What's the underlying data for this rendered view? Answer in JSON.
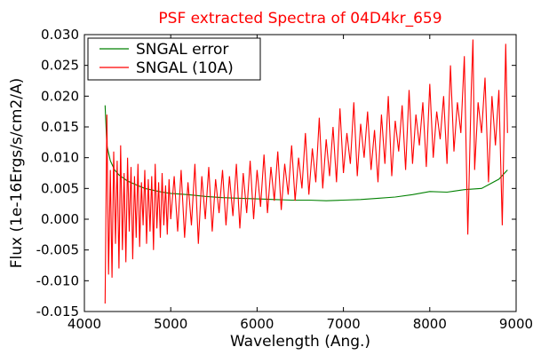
{
  "chart_data": {
    "type": "line",
    "title": "PSF extracted Spectra of 04D4kr_659",
    "title_color": "#ff0000",
    "xlabel": "Wavelength (Ang.)",
    "ylabel": "Flux (1e-16Ergs/s/cm2/A)",
    "xlim": [
      4000,
      9000
    ],
    "ylim": [
      -0.015,
      0.03
    ],
    "xticks": [
      4000,
      5000,
      6000,
      7000,
      8000,
      9000
    ],
    "yticks": [
      -0.015,
      -0.01,
      -0.005,
      0.0,
      0.005,
      0.01,
      0.015,
      0.02,
      0.025,
      0.03
    ],
    "xtick_labels": [
      "4000",
      "5000",
      "6000",
      "7000",
      "8000",
      "9000"
    ],
    "ytick_labels": [
      "-0.015",
      "-0.010",
      "-0.005",
      "0.000",
      "0.005",
      "0.010",
      "0.015",
      "0.020",
      "0.025",
      "0.030"
    ],
    "grid": false,
    "legend_position": "top-left",
    "series": [
      {
        "name": "SNGAL error",
        "color": "#008000",
        "x": [
          4240,
          4260,
          4300,
          4350,
          4400,
          4500,
          4600,
          4700,
          4800,
          4900,
          5000,
          5200,
          5400,
          5600,
          5800,
          6000,
          6200,
          6400,
          6600,
          6800,
          7000,
          7200,
          7400,
          7600,
          7800,
          8000,
          8200,
          8400,
          8600,
          8800,
          8900
        ],
        "y": [
          0.0185,
          0.012,
          0.0095,
          0.008,
          0.0072,
          0.0062,
          0.0056,
          0.005,
          0.0047,
          0.0044,
          0.0042,
          0.004,
          0.0037,
          0.0035,
          0.0034,
          0.0033,
          0.0032,
          0.0031,
          0.0031,
          0.003,
          0.0031,
          0.0032,
          0.0034,
          0.0036,
          0.004,
          0.0045,
          0.0044,
          0.0048,
          0.005,
          0.0065,
          0.008
        ]
      },
      {
        "name": "SNGAL (10A)",
        "color": "#ff0000",
        "x": [
          4240,
          4260,
          4280,
          4300,
          4320,
          4340,
          4360,
          4380,
          4400,
          4420,
          4440,
          4460,
          4480,
          4500,
          4520,
          4540,
          4560,
          4580,
          4600,
          4620,
          4640,
          4660,
          4680,
          4700,
          4720,
          4740,
          4760,
          4780,
          4800,
          4820,
          4840,
          4860,
          4880,
          4900,
          4920,
          4940,
          4960,
          4980,
          5000,
          5040,
          5080,
          5120,
          5160,
          5200,
          5240,
          5280,
          5320,
          5360,
          5400,
          5440,
          5480,
          5520,
          5560,
          5600,
          5640,
          5680,
          5720,
          5760,
          5800,
          5840,
          5880,
          5920,
          5960,
          6000,
          6040,
          6080,
          6120,
          6160,
          6200,
          6240,
          6280,
          6320,
          6360,
          6400,
          6440,
          6480,
          6520,
          6560,
          6600,
          6640,
          6680,
          6720,
          6760,
          6800,
          6840,
          6880,
          6920,
          6960,
          7000,
          7040,
          7080,
          7120,
          7160,
          7200,
          7240,
          7280,
          7320,
          7360,
          7400,
          7440,
          7480,
          7520,
          7560,
          7600,
          7640,
          7680,
          7720,
          7760,
          7800,
          7840,
          7880,
          7920,
          7960,
          8000,
          8040,
          8080,
          8120,
          8160,
          8200,
          8240,
          8280,
          8320,
          8360,
          8400,
          8440,
          8480,
          8500,
          8520,
          8560,
          8600,
          8640,
          8680,
          8720,
          8760,
          8800,
          8840,
          8880,
          8900
        ],
        "y": [
          -0.0137,
          0.017,
          -0.009,
          0.008,
          -0.0095,
          0.011,
          -0.004,
          0.0095,
          -0.008,
          0.012,
          -0.005,
          0.0075,
          -0.007,
          0.01,
          -0.002,
          0.0085,
          -0.0065,
          0.007,
          -0.003,
          0.009,
          -0.0045,
          0.006,
          -0.001,
          0.008,
          -0.004,
          0.0065,
          -0.002,
          0.007,
          -0.005,
          0.009,
          -0.0015,
          0.006,
          -0.003,
          0.0075,
          -0.001,
          0.0055,
          -0.0025,
          0.0065,
          0.0,
          0.007,
          -0.002,
          0.008,
          -0.003,
          0.006,
          -0.001,
          0.009,
          -0.004,
          0.007,
          0.0,
          0.0085,
          -0.002,
          0.0065,
          0.001,
          0.008,
          -0.001,
          0.007,
          0.0005,
          0.009,
          -0.0015,
          0.0075,
          0.001,
          0.0095,
          0.0,
          0.008,
          0.002,
          0.0105,
          0.001,
          0.0085,
          0.003,
          0.011,
          0.0015,
          0.009,
          0.004,
          0.012,
          0.003,
          0.01,
          0.005,
          0.014,
          0.004,
          0.0115,
          0.006,
          0.0165,
          0.005,
          0.013,
          0.007,
          0.015,
          0.006,
          0.018,
          0.0075,
          0.014,
          0.009,
          0.019,
          0.007,
          0.0155,
          0.01,
          0.0175,
          0.008,
          0.0145,
          0.006,
          0.017,
          0.009,
          0.02,
          0.007,
          0.016,
          0.011,
          0.0185,
          0.008,
          0.021,
          0.009,
          0.017,
          0.012,
          0.019,
          0.0085,
          0.022,
          0.01,
          0.0175,
          0.013,
          0.02,
          0.009,
          0.025,
          0.011,
          0.019,
          0.014,
          0.0265,
          -0.0025,
          0.021,
          0.0292,
          0.008,
          0.019,
          0.014,
          0.023,
          0.006,
          0.02,
          0.012,
          0.021,
          -0.001,
          0.0285,
          0.014
        ]
      }
    ]
  }
}
